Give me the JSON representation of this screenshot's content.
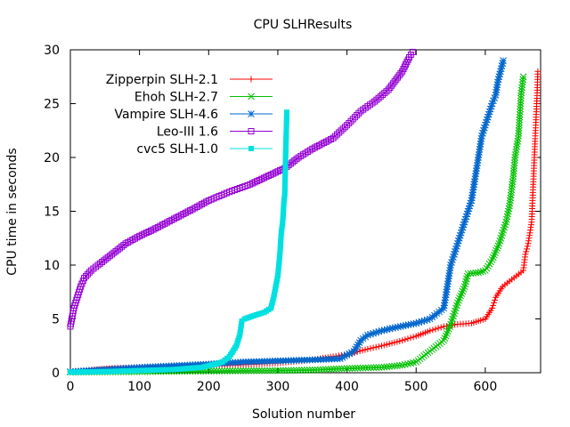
{
  "chart_data": {
    "type": "line",
    "title": "CPU SLHResults",
    "xlabel": "Solution number",
    "ylabel": "CPU time in seconds",
    "xlim": [
      0,
      680
    ],
    "ylim": [
      0,
      30
    ],
    "xticks": [
      0,
      100,
      200,
      300,
      400,
      500,
      600
    ],
    "yticks": [
      0,
      5,
      10,
      15,
      20,
      25,
      30
    ],
    "grid": false,
    "legend_position": "top-left",
    "series": [
      {
        "name": "Zipperpin SLH-2.1",
        "color": "#ff0000",
        "marker": "plus",
        "points": [
          [
            0,
            0.1
          ],
          [
            20,
            0.15
          ],
          [
            40,
            0.3
          ],
          [
            60,
            0.4
          ],
          [
            100,
            0.5
          ],
          [
            150,
            0.55
          ],
          [
            200,
            0.6
          ],
          [
            250,
            0.75
          ],
          [
            300,
            0.9
          ],
          [
            350,
            1.2
          ],
          [
            380,
            1.5
          ],
          [
            400,
            1.7
          ],
          [
            430,
            2.2
          ],
          [
            450,
            2.5
          ],
          [
            480,
            3.0
          ],
          [
            500,
            3.4
          ],
          [
            520,
            3.9
          ],
          [
            540,
            4.3
          ],
          [
            560,
            4.5
          ],
          [
            580,
            4.6
          ],
          [
            590,
            4.8
          ],
          [
            600,
            5.0
          ],
          [
            610,
            6.0
          ],
          [
            615,
            7.0
          ],
          [
            625,
            8.0
          ],
          [
            635,
            8.5
          ],
          [
            645,
            9.0
          ],
          [
            655,
            9.5
          ],
          [
            658,
            11.0
          ],
          [
            662,
            12.0
          ],
          [
            667,
            14.0
          ],
          [
            669,
            17.0
          ],
          [
            671,
            20.0
          ],
          [
            673,
            23.0
          ],
          [
            675,
            26.0
          ],
          [
            676,
            28.0
          ]
        ]
      },
      {
        "name": "Ehoh SLH-2.7",
        "color": "#00c000",
        "marker": "x",
        "points": [
          [
            0,
            0.05
          ],
          [
            100,
            0.1
          ],
          [
            200,
            0.15
          ],
          [
            300,
            0.2
          ],
          [
            350,
            0.25
          ],
          [
            400,
            0.4
          ],
          [
            450,
            0.5
          ],
          [
            480,
            0.7
          ],
          [
            500,
            1.0
          ],
          [
            520,
            2.0
          ],
          [
            540,
            3.0
          ],
          [
            550,
            4.5
          ],
          [
            560,
            6.5
          ],
          [
            570,
            8.0
          ],
          [
            575,
            9.2
          ],
          [
            590,
            9.3
          ],
          [
            600,
            9.5
          ],
          [
            610,
            10.5
          ],
          [
            620,
            12.0
          ],
          [
            630,
            14.0
          ],
          [
            635,
            15.5
          ],
          [
            640,
            18.0
          ],
          [
            643,
            20.0
          ],
          [
            648,
            22.0
          ],
          [
            650,
            24.0
          ],
          [
            652,
            26.0
          ],
          [
            655,
            27.5
          ]
        ]
      },
      {
        "name": "Vampire SLH-4.6",
        "color": "#0066cc",
        "marker": "star",
        "points": [
          [
            0,
            0.1
          ],
          [
            100,
            0.5
          ],
          [
            200,
            0.8
          ],
          [
            250,
            1.0
          ],
          [
            300,
            1.1
          ],
          [
            350,
            1.2
          ],
          [
            390,
            1.3
          ],
          [
            410,
            2.0
          ],
          [
            420,
            3.0
          ],
          [
            430,
            3.5
          ],
          [
            450,
            3.9
          ],
          [
            470,
            4.2
          ],
          [
            500,
            4.6
          ],
          [
            520,
            5.0
          ],
          [
            530,
            5.5
          ],
          [
            540,
            6.0
          ],
          [
            545,
            8.0
          ],
          [
            550,
            10.0
          ],
          [
            560,
            12.0
          ],
          [
            570,
            14.0
          ],
          [
            580,
            16.0
          ],
          [
            590,
            20.0
          ],
          [
            595,
            22.0
          ],
          [
            600,
            23.0
          ],
          [
            605,
            24.0
          ],
          [
            610,
            25.0
          ],
          [
            615,
            25.8
          ],
          [
            618,
            27.0
          ],
          [
            622,
            28.0
          ],
          [
            626,
            29.0
          ]
        ]
      },
      {
        "name": "Leo-III 1.6",
        "color": "#9400d3",
        "marker": "square-open",
        "points": [
          [
            0,
            4.3
          ],
          [
            5,
            6.0
          ],
          [
            10,
            7.0
          ],
          [
            15,
            8.0
          ],
          [
            20,
            8.8
          ],
          [
            30,
            9.5
          ],
          [
            40,
            10.0
          ],
          [
            60,
            11.0
          ],
          [
            80,
            12.0
          ],
          [
            100,
            12.7
          ],
          [
            120,
            13.3
          ],
          [
            150,
            14.3
          ],
          [
            180,
            15.3
          ],
          [
            200,
            16.0
          ],
          [
            230,
            16.8
          ],
          [
            260,
            17.5
          ],
          [
            290,
            18.4
          ],
          [
            310,
            19.0
          ],
          [
            330,
            20.0
          ],
          [
            350,
            20.8
          ],
          [
            380,
            21.8
          ],
          [
            400,
            23.0
          ],
          [
            420,
            24.3
          ],
          [
            440,
            25.2
          ],
          [
            460,
            26.3
          ],
          [
            480,
            28.0
          ],
          [
            490,
            29.3
          ],
          [
            495,
            29.8
          ]
        ]
      },
      {
        "name": "cvc5 SLH-1.0",
        "color": "#00e0e0",
        "marker": "square-filled",
        "points": [
          [
            0,
            0.05
          ],
          [
            50,
            0.1
          ],
          [
            100,
            0.2
          ],
          [
            150,
            0.3
          ],
          [
            190,
            0.5
          ],
          [
            210,
            0.8
          ],
          [
            220,
            1.0
          ],
          [
            230,
            1.5
          ],
          [
            240,
            2.5
          ],
          [
            245,
            3.5
          ],
          [
            248,
            4.8
          ],
          [
            252,
            5.0
          ],
          [
            265,
            5.3
          ],
          [
            280,
            5.6
          ],
          [
            290,
            6.0
          ],
          [
            294,
            7.0
          ],
          [
            297,
            8.0
          ],
          [
            300,
            9.0
          ],
          [
            303,
            11.0
          ],
          [
            305,
            13.0
          ],
          [
            307,
            14.0
          ],
          [
            309,
            16.0
          ],
          [
            310,
            16.5
          ],
          [
            311,
            19.5
          ],
          [
            313,
            24.2
          ]
        ]
      }
    ]
  }
}
